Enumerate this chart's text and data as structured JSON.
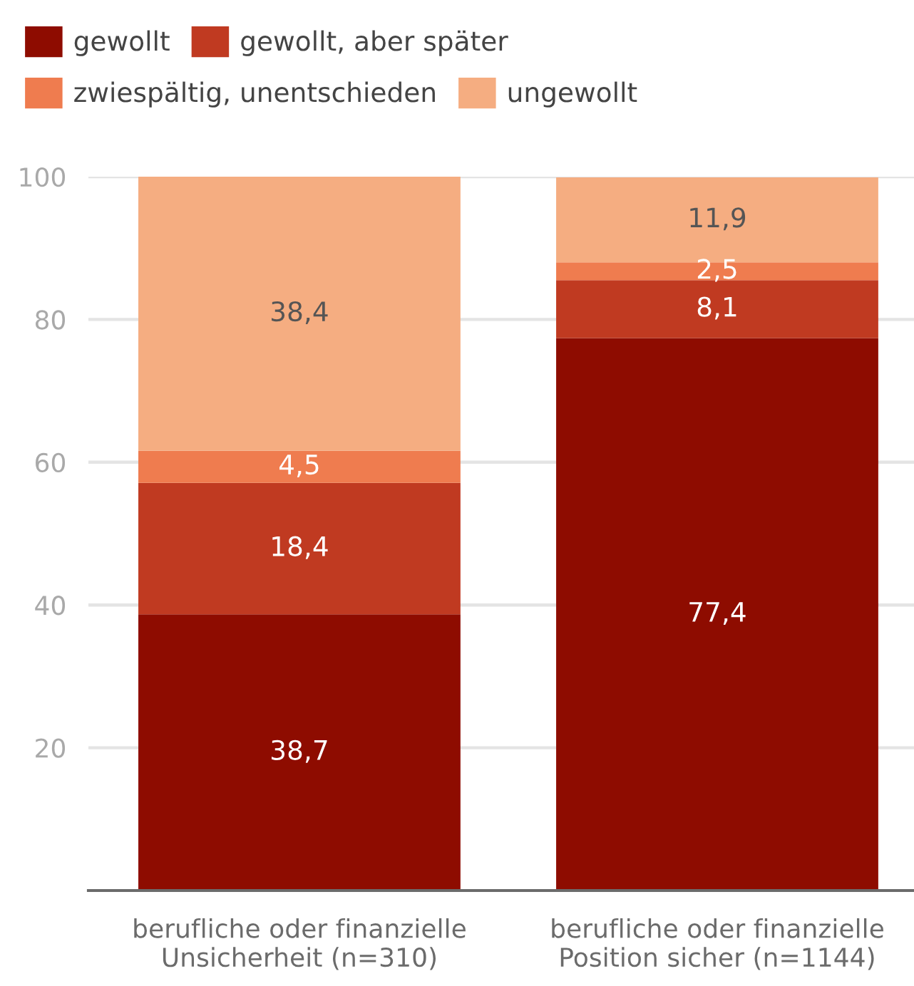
{
  "chart_data": {
    "type": "bar",
    "stacked": true,
    "categories": [
      "berufliche oder finanzielle\nUnsicherheit (n=310)",
      "berufliche oder finanzielle\nPosition sicher (n=1144)"
    ],
    "series": [
      {
        "name": "gewollt",
        "color": "#8e0c00",
        "values": [
          38.7,
          77.4
        ],
        "value_labels": [
          "38,7",
          "77,4"
        ]
      },
      {
        "name": "gewollt, aber später",
        "color": "#c03a21",
        "values": [
          18.4,
          8.1
        ],
        "value_labels": [
          "18,4",
          "8,1"
        ]
      },
      {
        "name": "zwiespältig, unentschieden",
        "color": "#ef7c4f",
        "values": [
          4.5,
          2.5
        ],
        "value_labels": [
          "4,5",
          "2,5"
        ]
      },
      {
        "name": "ungewollt",
        "color": "#f5ad81",
        "values": [
          38.4,
          11.9
        ],
        "value_labels": [
          "38,4",
          "11,9"
        ]
      }
    ],
    "ylim": [
      0,
      100
    ],
    "yticks": [
      20,
      40,
      60,
      80,
      100
    ],
    "grid": "y",
    "legend": "top left"
  }
}
